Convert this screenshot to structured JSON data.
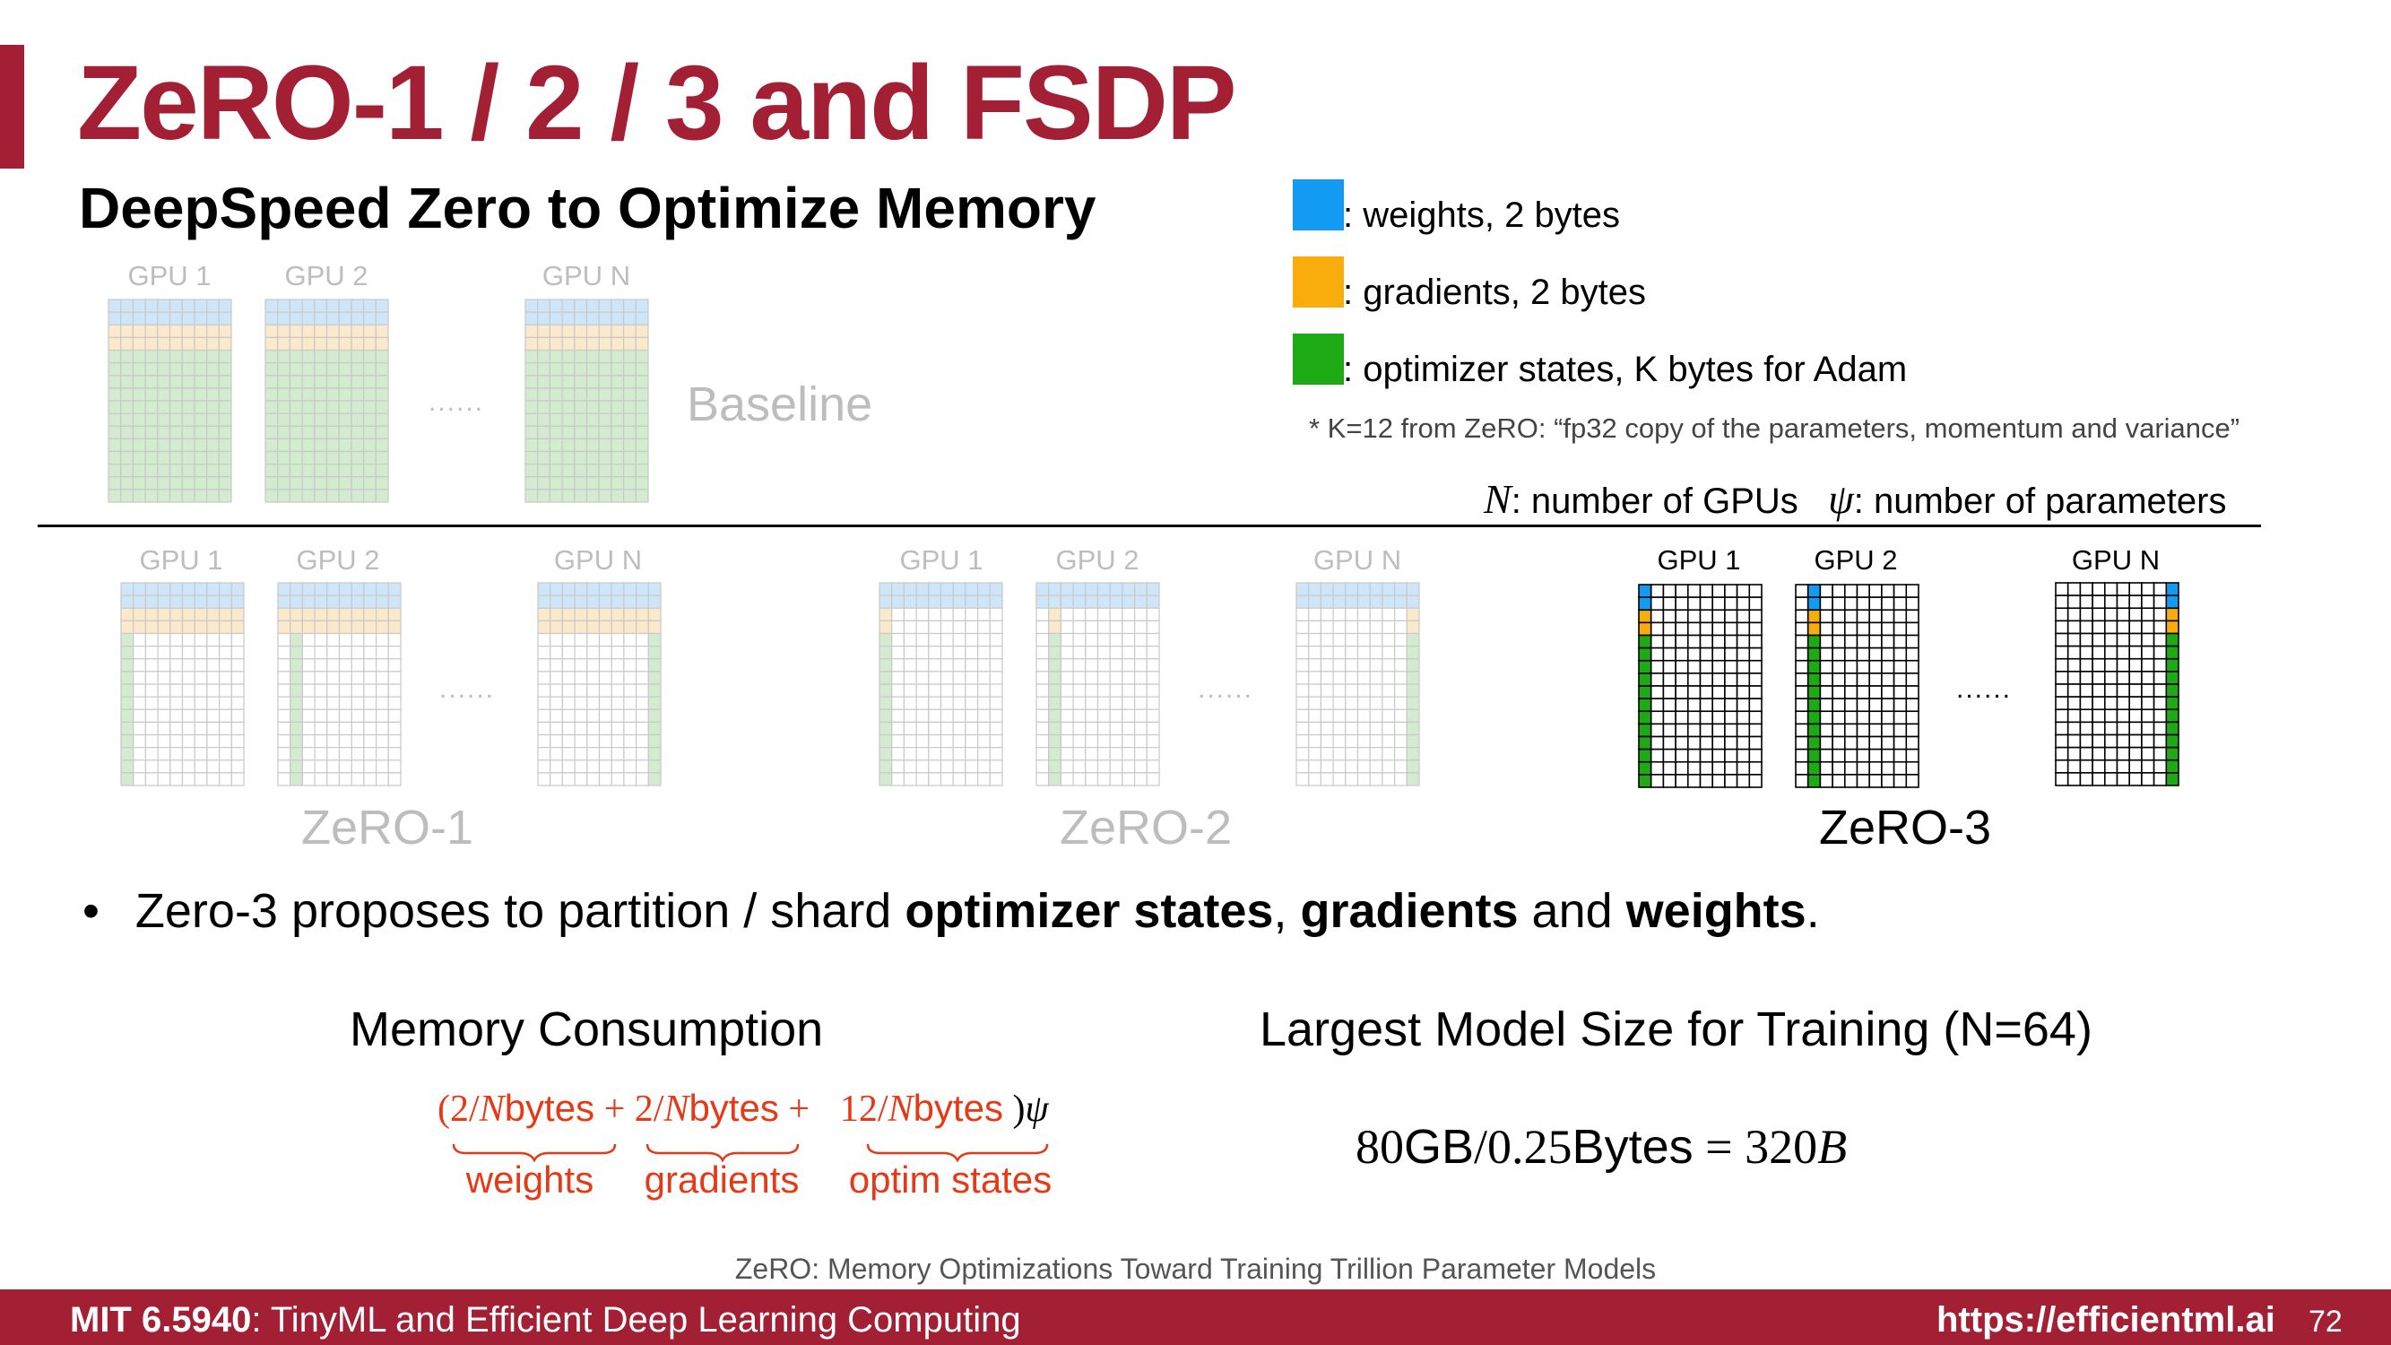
{
  "slide": {
    "title": "ZeRO-1 / 2 / 3 and FSDP",
    "subtitle": "DeepSpeed Zero to Optimize Memory",
    "page_number": "72"
  },
  "legend": {
    "items": [
      {
        "label": ": weights,  2 bytes",
        "color": "#139bf4"
      },
      {
        "label": ": gradients, 2 bytes",
        "color": "#f9ad0d"
      },
      {
        "label": ": optimizer states, K bytes for Adam",
        "color": "#1eaa14"
      }
    ],
    "footnote": "* K=12 from ZeRO: “fp32 copy of the parameters, momentum and variance”",
    "n_symbol": "N",
    "n_desc": ": number of GPUs",
    "psi_symbol": "ψ",
    "psi_desc": ": number of parameters"
  },
  "diagram": {
    "gpu_labels": [
      "GPU 1",
      "GPU 2",
      "GPU N"
    ],
    "ellipsis": "......",
    "baseline_label": "Baseline",
    "stages": [
      {
        "name": "ZeRO-1"
      },
      {
        "name": "ZeRO-2"
      },
      {
        "name": "ZeRO-3"
      }
    ],
    "faded_colors": {
      "weights": "#cfe6f8",
      "gradients": "#fbe9cc",
      "optimizer": "#d3ebcf",
      "line": "#c9c9c9"
    },
    "active_colors": {
      "weights": "#139bf4",
      "gradients": "#f9ad0d",
      "optimizer": "#1eaa14",
      "line": "#000000"
    }
  },
  "bullet": {
    "prefix": "Zero-3 proposes to partition / shard ",
    "bold1": "optimizer states",
    "sep1": ", ",
    "bold2": "gradients",
    "sep2": " and ",
    "bold3": "weights",
    "suffix": "."
  },
  "memory": {
    "heading": "Memory Consumption",
    "open": "(",
    "num1": "2/",
    "n1": "N",
    "unit1": "bytes",
    "plus1": " + ",
    "num2": "2/",
    "n2": "N",
    "unit2": "bytes",
    "plus2": " + ",
    "num3": "12/",
    "n3": "N",
    "unit3": "bytes",
    "close": " )",
    "psi": "ψ",
    "labels": [
      "weights",
      "gradients",
      "optim states"
    ]
  },
  "largest": {
    "heading": "Largest Model Size for Training (N=64)",
    "num_a": "80",
    "unit_a": "GB",
    "slash": "/",
    "num_b": "0.25",
    "unit_b": "Bytes",
    "eq": " = ",
    "num_c": "320",
    "unit_c": "B"
  },
  "citation": "ZeRO: Memory Optimizations Toward Training Trillion Parameter Models",
  "footer": {
    "course_bold": "MIT 6.5940",
    "course_rest": ": TinyML and Efficient Deep Learning Computing",
    "url": "https://efficientml.ai"
  }
}
